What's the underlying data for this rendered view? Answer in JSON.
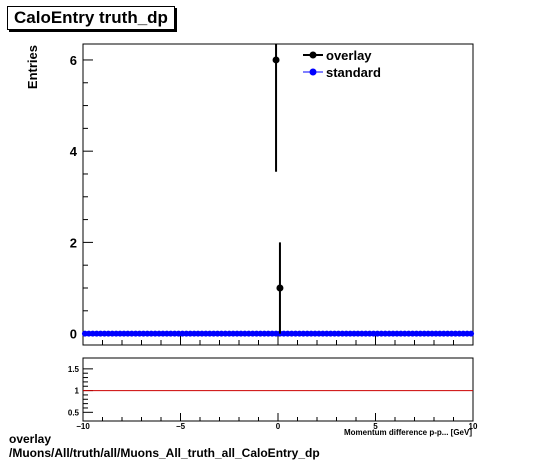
{
  "title": "CaloEntry truth_dp",
  "footer": {
    "line1": "overlay",
    "line2": "/Muons/All/truth/all/Muons_All_truth_all_CaloEntry_dp"
  },
  "colors": {
    "overlay": "#000000",
    "standard": "#0000ff",
    "ratio_line": "#cc0000"
  },
  "chart_data": [
    {
      "type": "scatter",
      "title": "CaloEntry truth_dp",
      "xlabel": "Momentum difference p-p... [GeV]",
      "ylabel": "Entries",
      "xlim": [
        -10,
        10
      ],
      "ylim": [
        -0.25,
        6.35
      ],
      "yticks": [
        0,
        2,
        4,
        6
      ],
      "xticks": [
        -10,
        -5,
        0,
        5,
        10
      ],
      "legend": {
        "placement": "top-right"
      },
      "series": [
        {
          "name": "overlay",
          "color": "#000000",
          "points": [
            {
              "x": -0.1,
              "y": 6,
              "yerr": 2.45
            },
            {
              "x": 0.1,
              "y": 1,
              "yerr": 1
            }
          ]
        },
        {
          "name": "standard",
          "color": "#0000ff",
          "x_start": -9.9,
          "x_step": 0.2,
          "count": 100,
          "y_value": 0
        }
      ]
    },
    {
      "type": "line",
      "ylim": [
        0.3,
        1.75
      ],
      "yticks": [
        0.5,
        1,
        1.5
      ],
      "ytick_labels": [
        "0.5",
        "1",
        "1.5"
      ],
      "xlim": [
        -10,
        10
      ],
      "xticks": [
        -10,
        -5,
        0,
        5,
        10
      ],
      "xtick_labels": [
        "−10",
        "−5",
        "0",
        "5",
        "10"
      ],
      "xlabel": "Momentum difference p-p... [GeV]",
      "series": [
        {
          "name": "ratio",
          "color": "#cc0000",
          "x": [
            -10,
            10
          ],
          "y": [
            1,
            1
          ]
        }
      ]
    }
  ]
}
